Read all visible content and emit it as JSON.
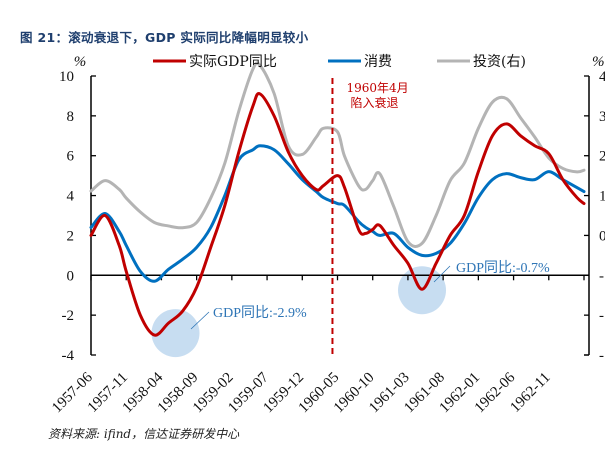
{
  "header": {
    "title": "图 21：滚动衰退下，GDP 实际同比降幅明显较小"
  },
  "footer": {
    "source": "资料来源: ifind，信达证券研发中心"
  },
  "colors": {
    "gdp": "#c00000",
    "consumption": "#0070c0",
    "investment": "#b4b4b4",
    "recession_line": "#c00000",
    "annotation_text": "#2e75b6",
    "highlight_circle": "#bdd7ee"
  },
  "chart_data": {
    "type": "line",
    "title": "图 21：滚动衰退下，GDP 实际同比降幅明显较小",
    "xlabel": "",
    "ylabel": "%",
    "y2label": "%",
    "ylim": [
      -4,
      10
    ],
    "y2lim": [
      -40,
      40
    ],
    "yticks": [
      "10",
      "8",
      "6",
      "4",
      "2",
      "0",
      "-2",
      "-4"
    ],
    "y2ticks_visible": [
      "4",
      "3",
      "2",
      "1",
      "0",
      "-",
      "-",
      "-"
    ],
    "x_start": "1957-06",
    "x_end": "1963-04",
    "xtick_labels": [
      "1957-06",
      "1957-11",
      "1958-04",
      "1958-09",
      "1959-02",
      "1959-07",
      "1959-12",
      "1960-05",
      "1960-10",
      "1961-03",
      "1961-08",
      "1962-01",
      "1962-06",
      "1962-11"
    ],
    "grid": false,
    "legend": {
      "placement": "top",
      "entries": [
        "实际GDP同比",
        "消费",
        "投资(右)"
      ]
    },
    "x_month_index": [
      0,
      2,
      4,
      5,
      7,
      9,
      11,
      13,
      15,
      17,
      19,
      21,
      23,
      24,
      26,
      28,
      30,
      32,
      33,
      35,
      36,
      38,
      39,
      40,
      41,
      43,
      45,
      47,
      49,
      51,
      53,
      55,
      57,
      59,
      61,
      63,
      65,
      67,
      69,
      70
    ],
    "series": [
      {
        "name": "实际GDP同比",
        "axis": "left",
        "values": [
          2.0,
          3.0,
          1.5,
          0.2,
          -2.0,
          -3.0,
          -2.4,
          -1.8,
          -0.6,
          1.4,
          3.5,
          6.2,
          8.5,
          9.1,
          8.0,
          6.2,
          5.0,
          4.3,
          4.5,
          5.0,
          4.4,
          2.3,
          2.1,
          2.3,
          2.5,
          1.5,
          0.6,
          -0.7,
          0.6,
          2.0,
          3.0,
          5.2,
          7.0,
          7.6,
          7.0,
          6.5,
          6.1,
          4.8,
          3.9,
          3.6
        ]
      },
      {
        "name": "消费",
        "axis": "left",
        "values": [
          2.4,
          3.1,
          2.2,
          1.5,
          0.2,
          -0.3,
          0.3,
          0.8,
          1.4,
          2.4,
          4.0,
          5.8,
          6.3,
          6.5,
          6.3,
          5.6,
          4.8,
          4.2,
          3.9,
          3.6,
          3.5,
          2.7,
          2.4,
          2.2,
          2.0,
          2.1,
          1.4,
          1.0,
          1.1,
          1.6,
          2.6,
          3.9,
          4.8,
          5.1,
          4.9,
          4.8,
          5.2,
          4.8,
          4.4,
          4.2
        ]
      },
      {
        "name": "投资(右)",
        "axis": "right",
        "values": [
          7.0,
          10.0,
          7.5,
          5.0,
          1.0,
          -2.0,
          -3.0,
          -3.5,
          -2.0,
          5.0,
          15.0,
          30.0,
          42.0,
          43.0,
          35.0,
          20.0,
          17.5,
          22.5,
          25.0,
          24.0,
          17.0,
          8.5,
          7.5,
          10.0,
          12.0,
          2.5,
          -7.5,
          -8.0,
          0.0,
          10.0,
          15.0,
          25.0,
          32.5,
          33.5,
          28.0,
          22.5,
          16.5,
          13.5,
          12.5,
          13.0
        ]
      }
    ],
    "annotations": [
      {
        "text": "1960年4月",
        "line2": "陷入衰退",
        "type": "vline",
        "x": "1960-04"
      },
      {
        "text": "GDP同比:-2.9%",
        "x": "1958-06",
        "y": -2.9
      },
      {
        "text": "GDP同比:-0.7%",
        "x": "1961-05",
        "y": -0.7
      }
    ]
  },
  "labels": {
    "left_unit": "%",
    "right_unit": "%",
    "recession_line1": "1960年4月",
    "recession_line2": "陷入衰退",
    "annot1": "GDP同比:-2.9%",
    "annot2": "GDP同比:-0.7%"
  }
}
